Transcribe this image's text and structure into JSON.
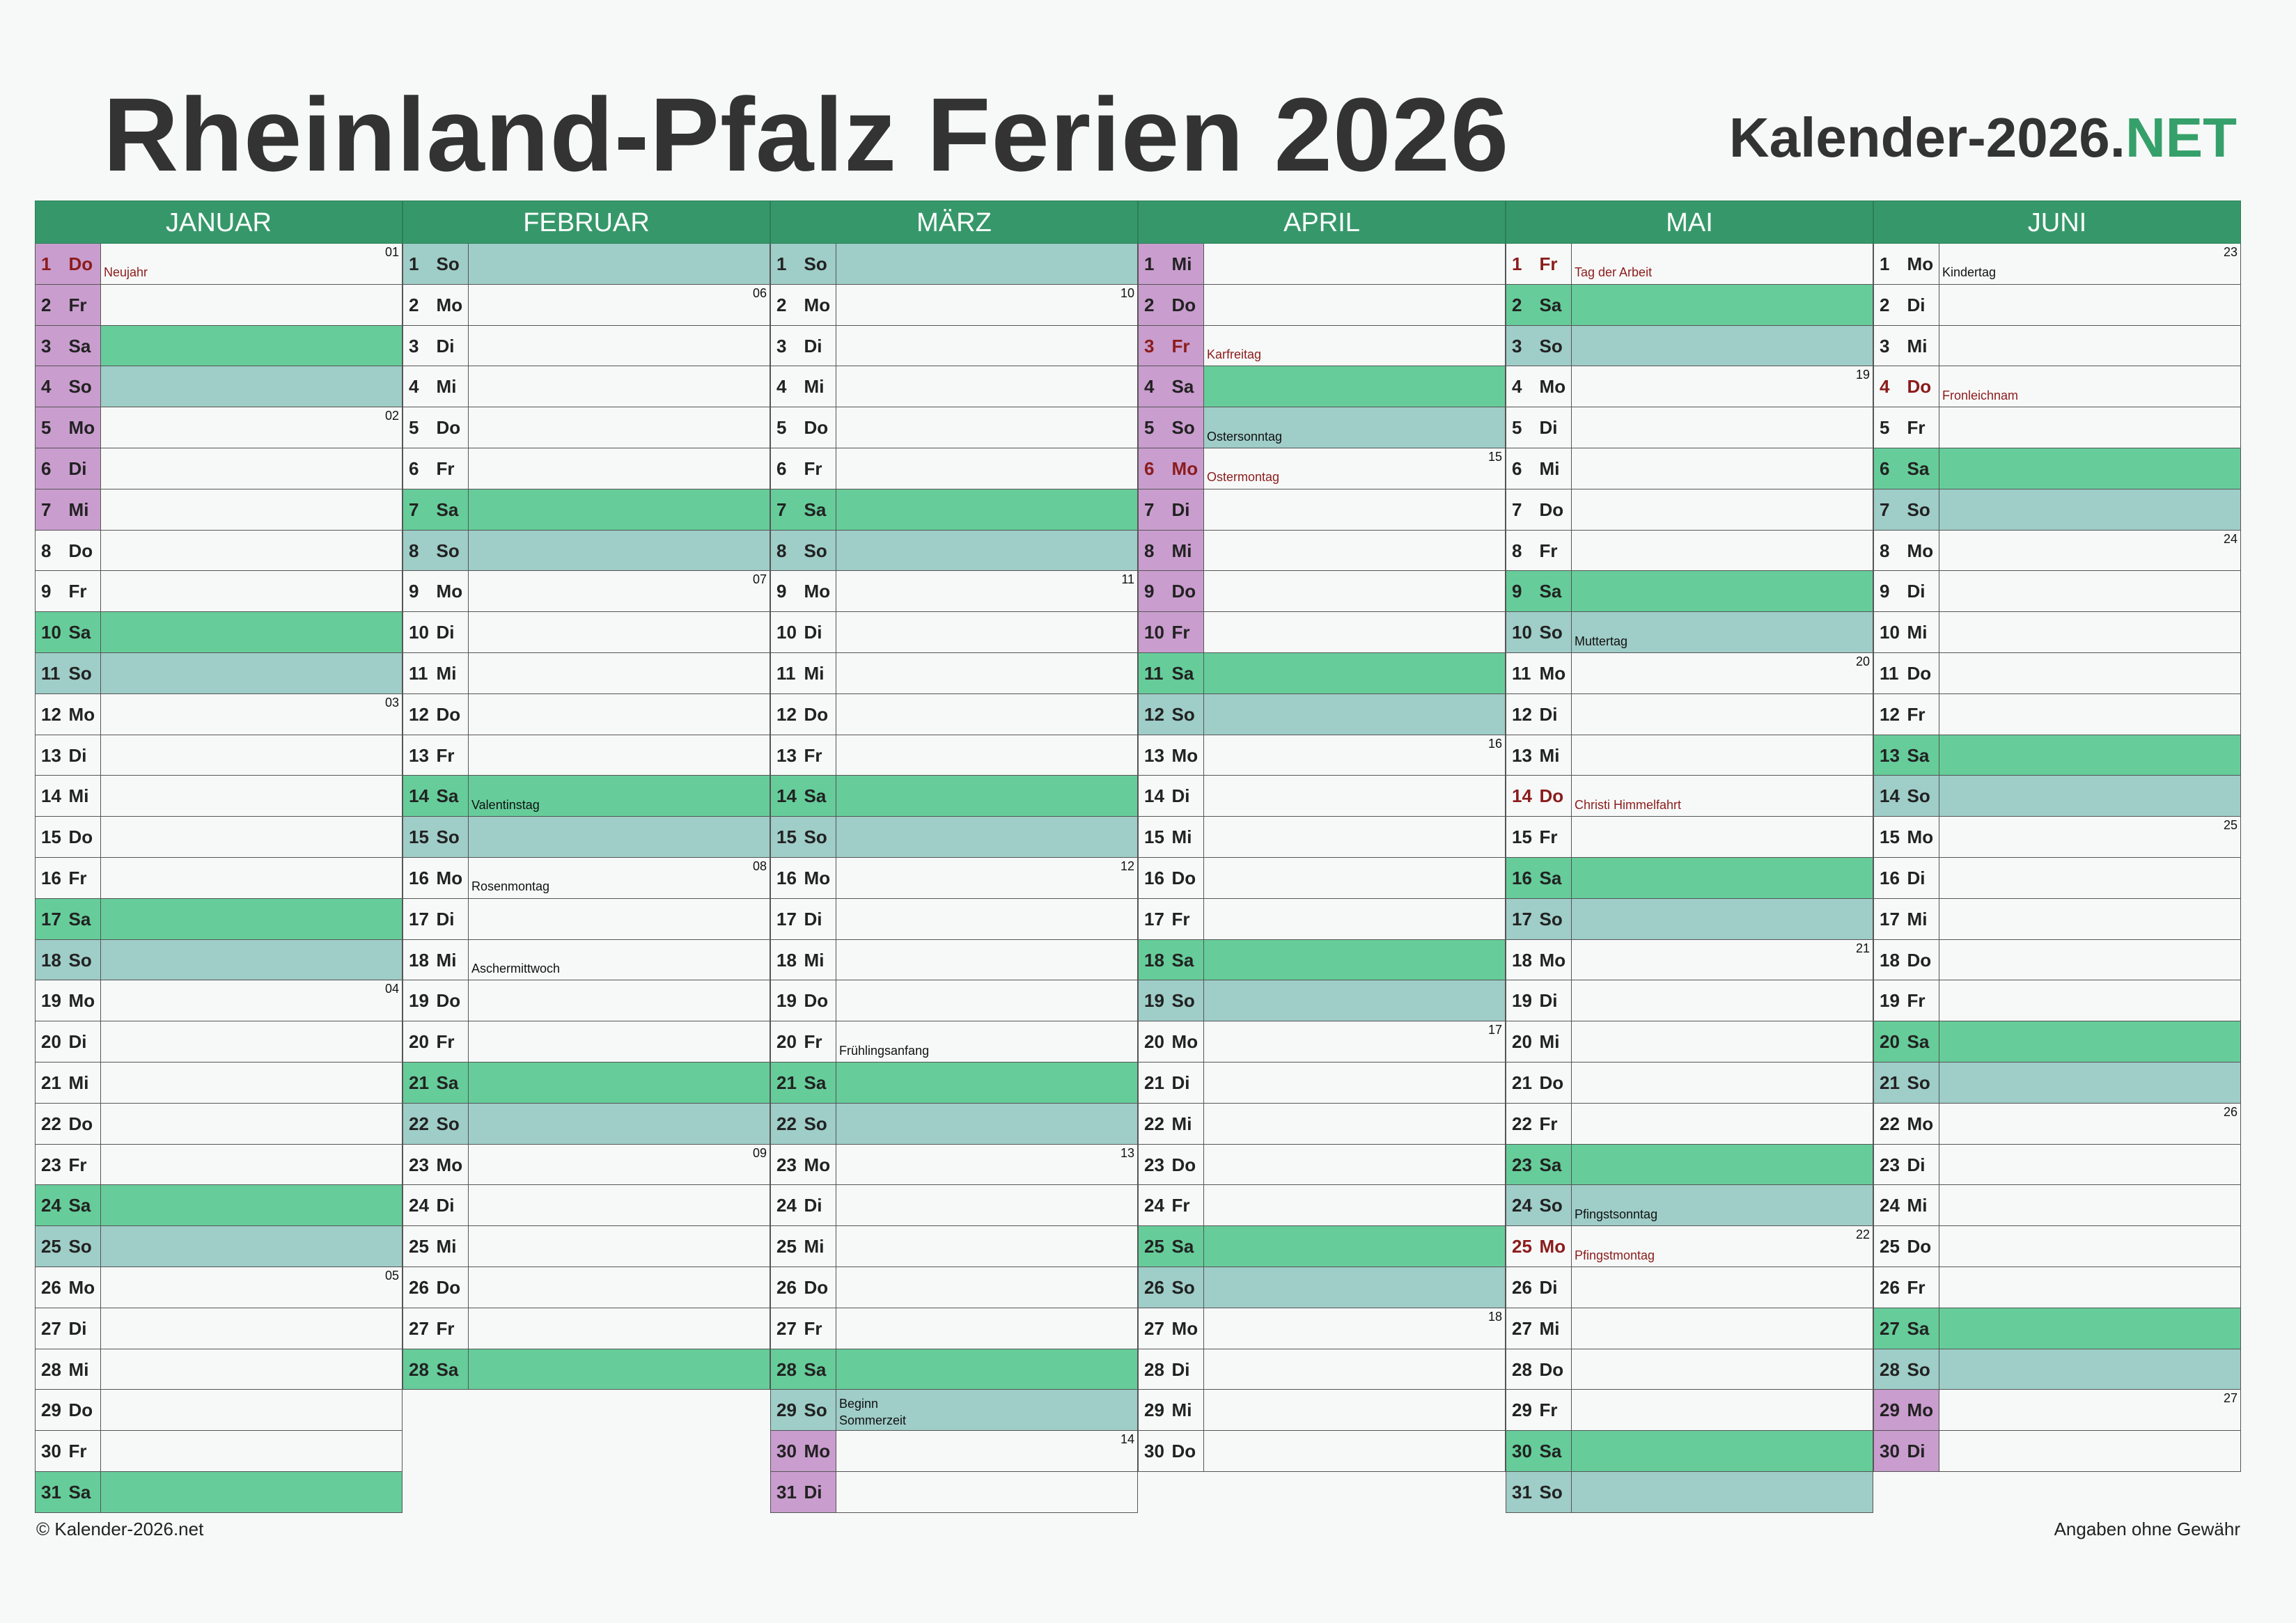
{
  "header": {
    "title": "Rheinland-Pfalz Ferien 2026",
    "brand_main": "Kalender-2026.",
    "brand_suffix": "NET"
  },
  "footer": {
    "left": "© Kalender-2026.net",
    "right": "Angaben ohne Gewähr"
  },
  "colors": {
    "header_green": "#36986a",
    "saturday": "#66cd9a",
    "sunday": "#9fcdc8",
    "ferien": "#c99dce",
    "holiday_text": "#8b1c1c"
  },
  "months": [
    {
      "name": "JANUAR",
      "days": [
        {
          "d": "1",
          "wd": "Do",
          "type": "holiday",
          "ferie": true,
          "note": "Neujahr",
          "week": "01"
        },
        {
          "d": "2",
          "wd": "Fr",
          "ferie": true
        },
        {
          "d": "3",
          "wd": "Sa",
          "type": "sat",
          "ferie": true
        },
        {
          "d": "4",
          "wd": "So",
          "type": "sun",
          "ferie": true
        },
        {
          "d": "5",
          "wd": "Mo",
          "ferie": true,
          "week": "02"
        },
        {
          "d": "6",
          "wd": "Di",
          "ferie": true
        },
        {
          "d": "7",
          "wd": "Mi",
          "ferie": true
        },
        {
          "d": "8",
          "wd": "Do"
        },
        {
          "d": "9",
          "wd": "Fr"
        },
        {
          "d": "10",
          "wd": "Sa",
          "type": "sat"
        },
        {
          "d": "11",
          "wd": "So",
          "type": "sun"
        },
        {
          "d": "12",
          "wd": "Mo",
          "week": "03"
        },
        {
          "d": "13",
          "wd": "Di"
        },
        {
          "d": "14",
          "wd": "Mi"
        },
        {
          "d": "15",
          "wd": "Do"
        },
        {
          "d": "16",
          "wd": "Fr"
        },
        {
          "d": "17",
          "wd": "Sa",
          "type": "sat"
        },
        {
          "d": "18",
          "wd": "So",
          "type": "sun"
        },
        {
          "d": "19",
          "wd": "Mo",
          "week": "04"
        },
        {
          "d": "20",
          "wd": "Di"
        },
        {
          "d": "21",
          "wd": "Mi"
        },
        {
          "d": "22",
          "wd": "Do"
        },
        {
          "d": "23",
          "wd": "Fr"
        },
        {
          "d": "24",
          "wd": "Sa",
          "type": "sat"
        },
        {
          "d": "25",
          "wd": "So",
          "type": "sun"
        },
        {
          "d": "26",
          "wd": "Mo",
          "week": "05"
        },
        {
          "d": "27",
          "wd": "Di"
        },
        {
          "d": "28",
          "wd": "Mi"
        },
        {
          "d": "29",
          "wd": "Do"
        },
        {
          "d": "30",
          "wd": "Fr"
        },
        {
          "d": "31",
          "wd": "Sa",
          "type": "sat"
        }
      ]
    },
    {
      "name": "FEBRUAR",
      "days": [
        {
          "d": "1",
          "wd": "So",
          "type": "sun"
        },
        {
          "d": "2",
          "wd": "Mo",
          "week": "06"
        },
        {
          "d": "3",
          "wd": "Di"
        },
        {
          "d": "4",
          "wd": "Mi"
        },
        {
          "d": "5",
          "wd": "Do"
        },
        {
          "d": "6",
          "wd": "Fr"
        },
        {
          "d": "7",
          "wd": "Sa",
          "type": "sat"
        },
        {
          "d": "8",
          "wd": "So",
          "type": "sun"
        },
        {
          "d": "9",
          "wd": "Mo",
          "week": "07"
        },
        {
          "d": "10",
          "wd": "Di"
        },
        {
          "d": "11",
          "wd": "Mi"
        },
        {
          "d": "12",
          "wd": "Do"
        },
        {
          "d": "13",
          "wd": "Fr"
        },
        {
          "d": "14",
          "wd": "Sa",
          "type": "sat",
          "note": "Valentinstag"
        },
        {
          "d": "15",
          "wd": "So",
          "type": "sun"
        },
        {
          "d": "16",
          "wd": "Mo",
          "note": "Rosenmontag",
          "week": "08"
        },
        {
          "d": "17",
          "wd": "Di"
        },
        {
          "d": "18",
          "wd": "Mi",
          "note": "Aschermittwoch"
        },
        {
          "d": "19",
          "wd": "Do"
        },
        {
          "d": "20",
          "wd": "Fr"
        },
        {
          "d": "21",
          "wd": "Sa",
          "type": "sat"
        },
        {
          "d": "22",
          "wd": "So",
          "type": "sun"
        },
        {
          "d": "23",
          "wd": "Mo",
          "week": "09"
        },
        {
          "d": "24",
          "wd": "Di"
        },
        {
          "d": "25",
          "wd": "Mi"
        },
        {
          "d": "26",
          "wd": "Do"
        },
        {
          "d": "27",
          "wd": "Fr"
        },
        {
          "d": "28",
          "wd": "Sa",
          "type": "sat"
        }
      ]
    },
    {
      "name": "MÄRZ",
      "days": [
        {
          "d": "1",
          "wd": "So",
          "type": "sun"
        },
        {
          "d": "2",
          "wd": "Mo",
          "week": "10"
        },
        {
          "d": "3",
          "wd": "Di"
        },
        {
          "d": "4",
          "wd": "Mi"
        },
        {
          "d": "5",
          "wd": "Do"
        },
        {
          "d": "6",
          "wd": "Fr"
        },
        {
          "d": "7",
          "wd": "Sa",
          "type": "sat"
        },
        {
          "d": "8",
          "wd": "So",
          "type": "sun"
        },
        {
          "d": "9",
          "wd": "Mo",
          "week": "11"
        },
        {
          "d": "10",
          "wd": "Di"
        },
        {
          "d": "11",
          "wd": "Mi"
        },
        {
          "d": "12",
          "wd": "Do"
        },
        {
          "d": "13",
          "wd": "Fr"
        },
        {
          "d": "14",
          "wd": "Sa",
          "type": "sat"
        },
        {
          "d": "15",
          "wd": "So",
          "type": "sun"
        },
        {
          "d": "16",
          "wd": "Mo",
          "week": "12"
        },
        {
          "d": "17",
          "wd": "Di"
        },
        {
          "d": "18",
          "wd": "Mi"
        },
        {
          "d": "19",
          "wd": "Do"
        },
        {
          "d": "20",
          "wd": "Fr",
          "note": "Frühlingsanfang"
        },
        {
          "d": "21",
          "wd": "Sa",
          "type": "sat"
        },
        {
          "d": "22",
          "wd": "So",
          "type": "sun"
        },
        {
          "d": "23",
          "wd": "Mo",
          "week": "13"
        },
        {
          "d": "24",
          "wd": "Di"
        },
        {
          "d": "25",
          "wd": "Mi"
        },
        {
          "d": "26",
          "wd": "Do"
        },
        {
          "d": "27",
          "wd": "Fr"
        },
        {
          "d": "28",
          "wd": "Sa",
          "type": "sat"
        },
        {
          "d": "29",
          "wd": "So",
          "type": "sun",
          "note": "Beginn Sommerzeit"
        },
        {
          "d": "30",
          "wd": "Mo",
          "ferie": true,
          "week": "14"
        },
        {
          "d": "31",
          "wd": "Di",
          "ferie": true
        }
      ]
    },
    {
      "name": "APRIL",
      "days": [
        {
          "d": "1",
          "wd": "Mi",
          "ferie": true
        },
        {
          "d": "2",
          "wd": "Do",
          "ferie": true
        },
        {
          "d": "3",
          "wd": "Fr",
          "type": "holiday",
          "ferie": true,
          "note": "Karfreitag"
        },
        {
          "d": "4",
          "wd": "Sa",
          "type": "sat",
          "ferie": true
        },
        {
          "d": "5",
          "wd": "So",
          "type": "sun",
          "ferie": true,
          "note": "Ostersonntag"
        },
        {
          "d": "6",
          "wd": "Mo",
          "type": "holiday",
          "ferie": true,
          "note": "Ostermontag",
          "week": "15"
        },
        {
          "d": "7",
          "wd": "Di",
          "ferie": true
        },
        {
          "d": "8",
          "wd": "Mi",
          "ferie": true
        },
        {
          "d": "9",
          "wd": "Do",
          "ferie": true
        },
        {
          "d": "10",
          "wd": "Fr",
          "ferie": true
        },
        {
          "d": "11",
          "wd": "Sa",
          "type": "sat"
        },
        {
          "d": "12",
          "wd": "So",
          "type": "sun"
        },
        {
          "d": "13",
          "wd": "Mo",
          "week": "16"
        },
        {
          "d": "14",
          "wd": "Di"
        },
        {
          "d": "15",
          "wd": "Mi"
        },
        {
          "d": "16",
          "wd": "Do"
        },
        {
          "d": "17",
          "wd": "Fr"
        },
        {
          "d": "18",
          "wd": "Sa",
          "type": "sat"
        },
        {
          "d": "19",
          "wd": "So",
          "type": "sun"
        },
        {
          "d": "20",
          "wd": "Mo",
          "week": "17"
        },
        {
          "d": "21",
          "wd": "Di"
        },
        {
          "d": "22",
          "wd": "Mi"
        },
        {
          "d": "23",
          "wd": "Do"
        },
        {
          "d": "24",
          "wd": "Fr"
        },
        {
          "d": "25",
          "wd": "Sa",
          "type": "sat"
        },
        {
          "d": "26",
          "wd": "So",
          "type": "sun"
        },
        {
          "d": "27",
          "wd": "Mo",
          "week": "18"
        },
        {
          "d": "28",
          "wd": "Di"
        },
        {
          "d": "29",
          "wd": "Mi"
        },
        {
          "d": "30",
          "wd": "Do"
        }
      ]
    },
    {
      "name": "MAI",
      "days": [
        {
          "d": "1",
          "wd": "Fr",
          "type": "holiday",
          "note": "Tag der Arbeit"
        },
        {
          "d": "2",
          "wd": "Sa",
          "type": "sat"
        },
        {
          "d": "3",
          "wd": "So",
          "type": "sun"
        },
        {
          "d": "4",
          "wd": "Mo",
          "week": "19"
        },
        {
          "d": "5",
          "wd": "Di"
        },
        {
          "d": "6",
          "wd": "Mi"
        },
        {
          "d": "7",
          "wd": "Do"
        },
        {
          "d": "8",
          "wd": "Fr"
        },
        {
          "d": "9",
          "wd": "Sa",
          "type": "sat"
        },
        {
          "d": "10",
          "wd": "So",
          "type": "sun",
          "note": "Muttertag"
        },
        {
          "d": "11",
          "wd": "Mo",
          "week": "20"
        },
        {
          "d": "12",
          "wd": "Di"
        },
        {
          "d": "13",
          "wd": "Mi"
        },
        {
          "d": "14",
          "wd": "Do",
          "type": "holiday",
          "note": "Christi Himmelfahrt"
        },
        {
          "d": "15",
          "wd": "Fr"
        },
        {
          "d": "16",
          "wd": "Sa",
          "type": "sat"
        },
        {
          "d": "17",
          "wd": "So",
          "type": "sun"
        },
        {
          "d": "18",
          "wd": "Mo",
          "week": "21"
        },
        {
          "d": "19",
          "wd": "Di"
        },
        {
          "d": "20",
          "wd": "Mi"
        },
        {
          "d": "21",
          "wd": "Do"
        },
        {
          "d": "22",
          "wd": "Fr"
        },
        {
          "d": "23",
          "wd": "Sa",
          "type": "sat"
        },
        {
          "d": "24",
          "wd": "So",
          "type": "sun",
          "note": "Pfingstsonntag"
        },
        {
          "d": "25",
          "wd": "Mo",
          "type": "holiday",
          "note": "Pfingstmontag",
          "week": "22"
        },
        {
          "d": "26",
          "wd": "Di"
        },
        {
          "d": "27",
          "wd": "Mi"
        },
        {
          "d": "28",
          "wd": "Do"
        },
        {
          "d": "29",
          "wd": "Fr"
        },
        {
          "d": "30",
          "wd": "Sa",
          "type": "sat"
        },
        {
          "d": "31",
          "wd": "So",
          "type": "sun"
        }
      ]
    },
    {
      "name": "JUNI",
      "days": [
        {
          "d": "1",
          "wd": "Mo",
          "note": "Kindertag",
          "week": "23"
        },
        {
          "d": "2",
          "wd": "Di"
        },
        {
          "d": "3",
          "wd": "Mi"
        },
        {
          "d": "4",
          "wd": "Do",
          "type": "holiday",
          "note": "Fronleichnam"
        },
        {
          "d": "5",
          "wd": "Fr"
        },
        {
          "d": "6",
          "wd": "Sa",
          "type": "sat"
        },
        {
          "d": "7",
          "wd": "So",
          "type": "sun"
        },
        {
          "d": "8",
          "wd": "Mo",
          "week": "24"
        },
        {
          "d": "9",
          "wd": "Di"
        },
        {
          "d": "10",
          "wd": "Mi"
        },
        {
          "d": "11",
          "wd": "Do"
        },
        {
          "d": "12",
          "wd": "Fr"
        },
        {
          "d": "13",
          "wd": "Sa",
          "type": "sat"
        },
        {
          "d": "14",
          "wd": "So",
          "type": "sun"
        },
        {
          "d": "15",
          "wd": "Mo",
          "week": "25"
        },
        {
          "d": "16",
          "wd": "Di"
        },
        {
          "d": "17",
          "wd": "Mi"
        },
        {
          "d": "18",
          "wd": "Do"
        },
        {
          "d": "19",
          "wd": "Fr"
        },
        {
          "d": "20",
          "wd": "Sa",
          "type": "sat"
        },
        {
          "d": "21",
          "wd": "So",
          "type": "sun"
        },
        {
          "d": "22",
          "wd": "Mo",
          "week": "26"
        },
        {
          "d": "23",
          "wd": "Di"
        },
        {
          "d": "24",
          "wd": "Mi"
        },
        {
          "d": "25",
          "wd": "Do"
        },
        {
          "d": "26",
          "wd": "Fr"
        },
        {
          "d": "27",
          "wd": "Sa",
          "type": "sat"
        },
        {
          "d": "28",
          "wd": "So",
          "type": "sun"
        },
        {
          "d": "29",
          "wd": "Mo",
          "ferie": true,
          "week": "27"
        },
        {
          "d": "30",
          "wd": "Di",
          "ferie": true
        }
      ]
    }
  ]
}
